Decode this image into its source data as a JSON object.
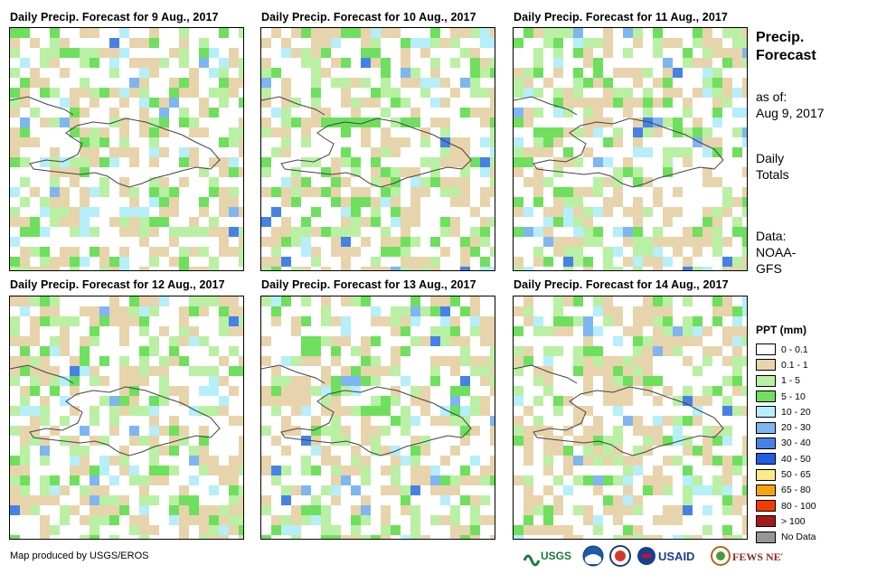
{
  "panels": [
    {
      "title": "Daily Precip. Forecast for 9 Aug., 2017"
    },
    {
      "title": "Daily Precip. Forecast for 10 Aug., 2017"
    },
    {
      "title": "Daily Precip. Forecast for 11 Aug., 2017"
    },
    {
      "title": "Daily Precip. Forecast for 12 Aug., 2017"
    },
    {
      "title": "Daily Precip. Forecast for 13 Aug., 2017"
    },
    {
      "title": "Daily Precip. Forecast for 14 Aug., 2017"
    }
  ],
  "side": {
    "title_line1": "Precip.",
    "title_line2": "Forecast",
    "asof_label": "as of:",
    "asof_date": "Aug 9, 2017",
    "totals_line1": "Daily",
    "totals_line2": "Totals",
    "data_label": "Data:",
    "data_source_line1": "NOAA-",
    "data_source_line2": "GFS"
  },
  "legend": {
    "title": "PPT (mm)",
    "items": [
      {
        "label": "0 - 0.1",
        "color": "#ffffff"
      },
      {
        "label": "0.1 - 1",
        "color": "#e8d4ac"
      },
      {
        "label": "1 - 5",
        "color": "#b9f0a4"
      },
      {
        "label": "5 - 10",
        "color": "#6fdf5e"
      },
      {
        "label": "10 - 20",
        "color": "#b6eefa"
      },
      {
        "label": "20 - 30",
        "color": "#7fb5f0"
      },
      {
        "label": "30 - 40",
        "color": "#4682e6"
      },
      {
        "label": "40 - 50",
        "color": "#1f5ee0"
      },
      {
        "label": "50 - 65",
        "color": "#fee98a"
      },
      {
        "label": "65 - 80",
        "color": "#f8a30c"
      },
      {
        "label": "80 - 100",
        "color": "#f43b00"
      },
      {
        "label": "> 100",
        "color": "#a31a1a"
      },
      {
        "label": "No Data",
        "color": "#969696"
      }
    ]
  },
  "footer": {
    "credit": "Map produced by USGS/EROS",
    "logos": [
      "USGS",
      "NOAA",
      "DOI",
      "USAID",
      "FEWS NET"
    ]
  }
}
